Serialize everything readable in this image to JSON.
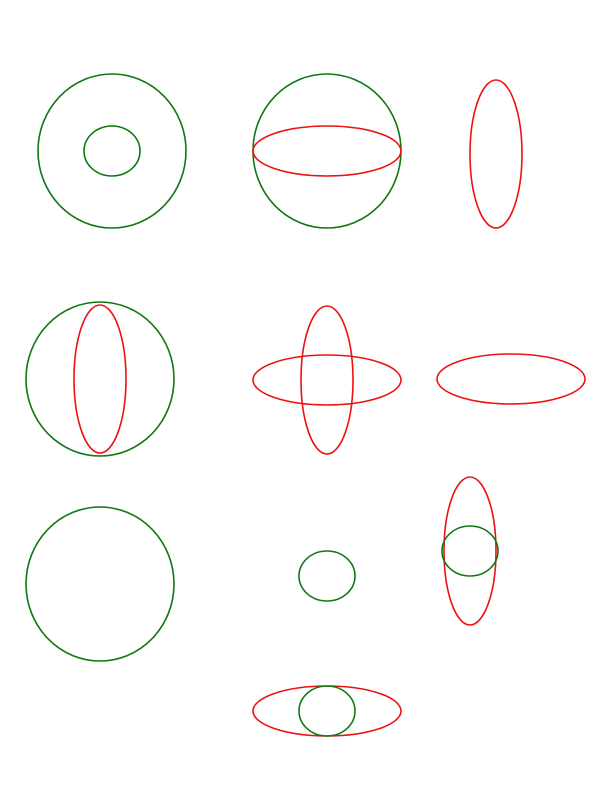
{
  "colors": {
    "green": "#117711",
    "red": "#ee1111",
    "background": "#ffffff"
  },
  "figures": [
    {
      "name": "large-circle-with-small-green-circle",
      "shapes": [
        "large-green-circle",
        "small-green-circle"
      ]
    },
    {
      "name": "large-circle-with-horizontal-red-ellipse",
      "shapes": [
        "large-green-circle",
        "horizontal-red-ellipse"
      ]
    },
    {
      "name": "vertical-red-ellipse-alone",
      "shapes": [
        "vertical-red-ellipse"
      ]
    },
    {
      "name": "large-circle-with-vertical-red-ellipse",
      "shapes": [
        "large-green-circle",
        "vertical-red-ellipse"
      ]
    },
    {
      "name": "crossed-red-ellipses",
      "shapes": [
        "horizontal-red-ellipse",
        "vertical-red-ellipse"
      ]
    },
    {
      "name": "horizontal-red-ellipse-alone",
      "shapes": [
        "horizontal-red-ellipse"
      ]
    },
    {
      "name": "large-green-circle-alone",
      "shapes": [
        "large-green-circle"
      ]
    },
    {
      "name": "small-green-circle-alone",
      "shapes": [
        "small-green-circle"
      ]
    },
    {
      "name": "vertical-red-ellipse-with-small-green-circle",
      "shapes": [
        "vertical-red-ellipse",
        "small-green-circle"
      ]
    },
    {
      "name": "horizontal-red-ellipse-with-small-green-circle",
      "shapes": [
        "horizontal-red-ellipse",
        "small-green-circle"
      ]
    }
  ]
}
